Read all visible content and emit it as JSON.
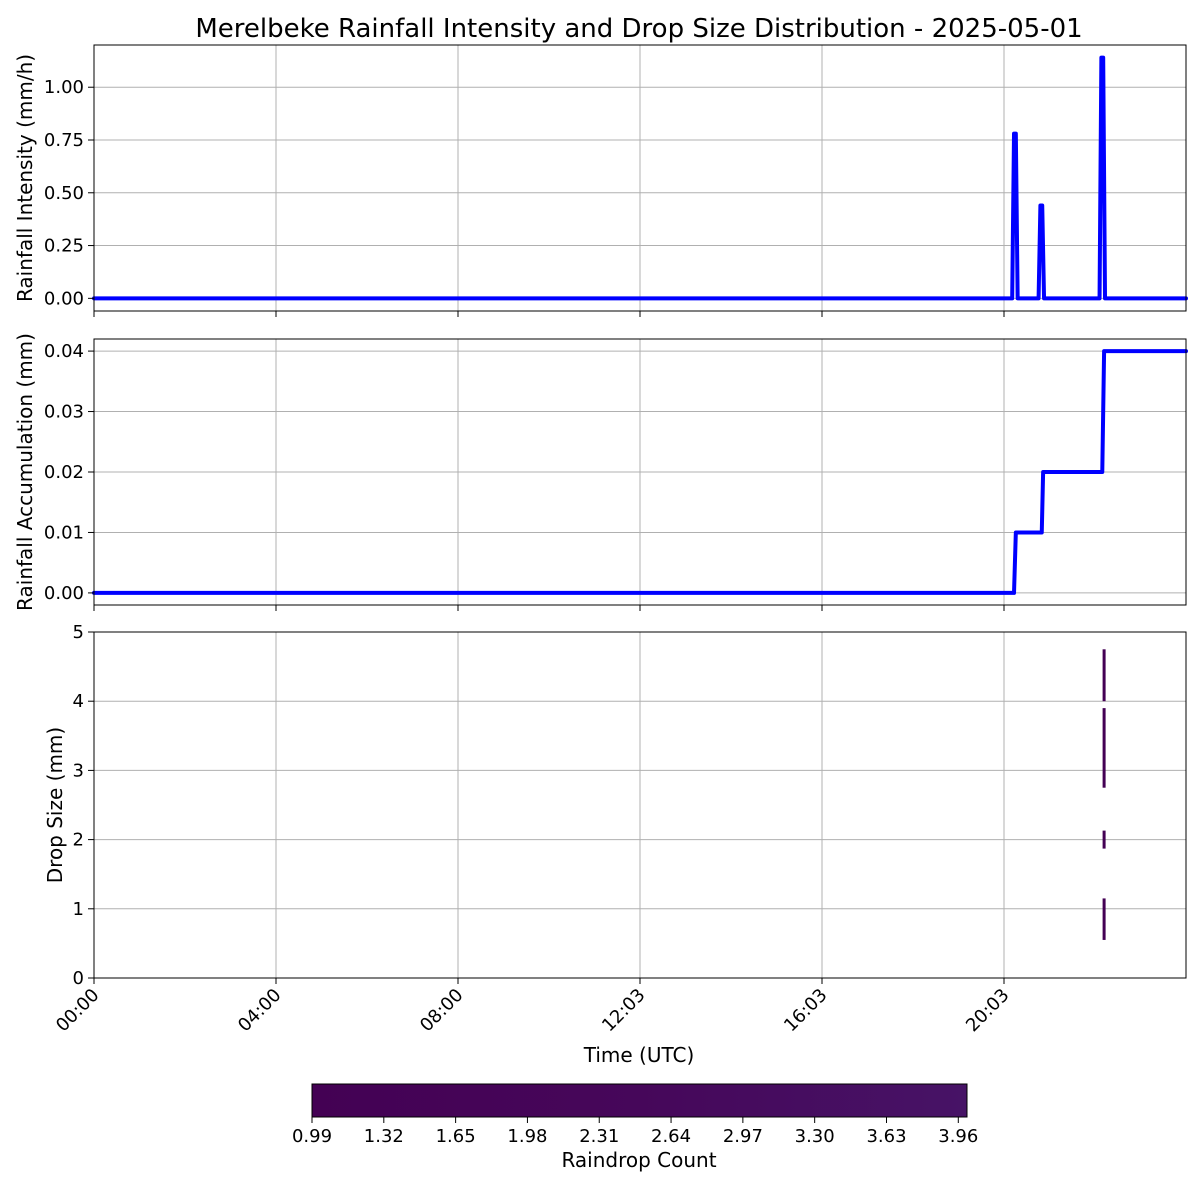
{
  "chart_data": [
    {
      "type": "line",
      "title": "Merelbeke Rainfall Intensity and Drop Size Distribution - 2025-05-01",
      "ylabel": "Rainfall Intensity (mm/h)",
      "xlim": [
        0,
        24
      ],
      "ylim": [
        -0.06,
        1.2
      ],
      "yticks": [
        "0.00",
        "0.25",
        "0.50",
        "0.75",
        "1.00"
      ],
      "grid": true,
      "color": "#0000ff",
      "series": [
        {
          "x": [
            0,
            20.18,
            20.22,
            20.26,
            20.3,
            20.76,
            20.8,
            20.84,
            20.88,
            22.1,
            22.14,
            22.18,
            22.22,
            24
          ],
          "y": [
            0,
            0,
            0.78,
            0.78,
            0,
            0,
            0.44,
            0.44,
            0,
            0,
            1.14,
            1.14,
            0,
            0
          ]
        }
      ]
    },
    {
      "type": "line",
      "ylabel": "Rainfall Accumulation (mm)",
      "xlim": [
        0,
        24
      ],
      "ylim": [
        -0.002,
        0.042
      ],
      "yticks": [
        "0.00",
        "0.01",
        "0.02",
        "0.03",
        "0.04"
      ],
      "grid": true,
      "color": "#0000ff",
      "series": [
        {
          "x": [
            0,
            20.22,
            20.26,
            20.83,
            20.86,
            22.16,
            22.2,
            24
          ],
          "y": [
            0,
            0,
            0.01,
            0.01,
            0.02,
            0.02,
            0.04,
            0.04
          ]
        }
      ]
    },
    {
      "type": "heatmap",
      "ylabel": "Drop Size (mm)",
      "xlabel": "Time (UTC)",
      "xlim": [
        0,
        24
      ],
      "ylim": [
        0,
        5
      ],
      "yticks": [
        "0",
        "1",
        "2",
        "3",
        "4",
        "5"
      ],
      "xtick_values": [
        0,
        4,
        8,
        12,
        16,
        20
      ],
      "xtick_labels": [
        "00:00",
        "04:00",
        "08:00",
        "12:03",
        "16:03",
        "20:03"
      ],
      "grid": true,
      "cells": [
        {
          "x": 22.2,
          "y0": 0.55,
          "y1": 1.15,
          "count": 1.0
        },
        {
          "x": 22.2,
          "y0": 1.87,
          "y1": 2.13,
          "count": 1.0
        },
        {
          "x": 22.2,
          "y0": 2.75,
          "y1": 3.9,
          "count": 1.0
        },
        {
          "x": 22.2,
          "y0": 4.0,
          "y1": 4.75,
          "count": 1.0
        }
      ],
      "colorbar": {
        "label": "Raindrop Count",
        "min": 0.99,
        "max": 4.0,
        "ticks": [
          "0.99",
          "1.32",
          "1.65",
          "1.98",
          "2.31",
          "2.64",
          "2.97",
          "3.30",
          "3.63",
          "3.96"
        ],
        "colormap": "viridis-low",
        "colors": [
          "#440154",
          "#46075a",
          "#471366"
        ]
      }
    }
  ]
}
